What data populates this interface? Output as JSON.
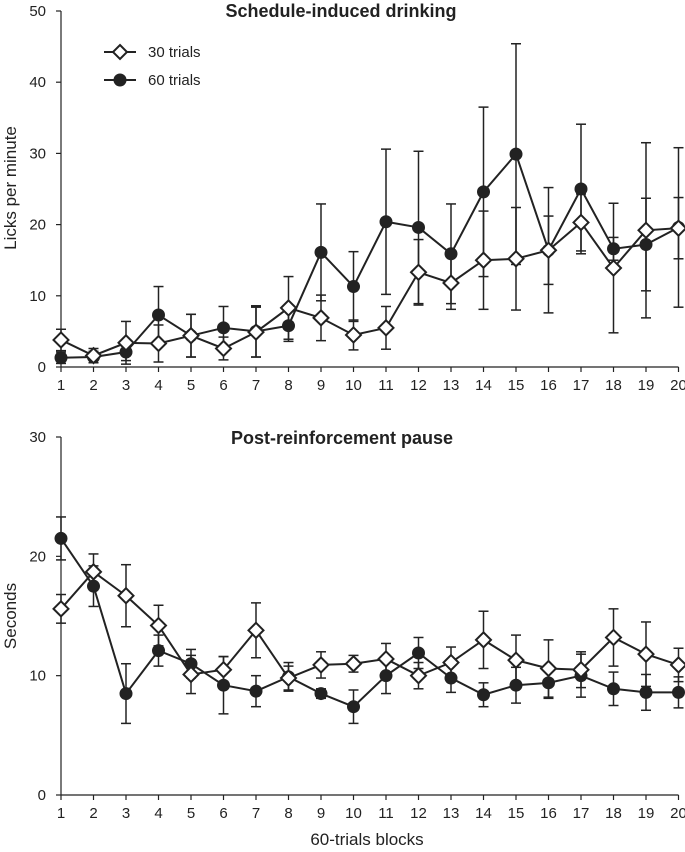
{
  "chart_data": [
    {
      "type": "line",
      "title": "Schedule-induced drinking",
      "xlabel": "",
      "ylabel": "Licks per minute",
      "ylim": [
        0,
        50
      ],
      "yticks": [
        0,
        10,
        20,
        30,
        40,
        50
      ],
      "categories": [
        "1",
        "2",
        "3",
        "4",
        "5",
        "6",
        "7",
        "8",
        "9",
        "10",
        "11",
        "12",
        "13",
        "14",
        "15",
        "16",
        "17",
        "18",
        "19",
        "20"
      ],
      "legend_position": "top-left",
      "series": [
        {
          "name": "30 trials",
          "marker": "open-diamond",
          "values": [
            3.8,
            1.6,
            3.4,
            3.3,
            4.4,
            2.6,
            4.9,
            8.3,
            6.9,
            4.5,
            5.5,
            13.3,
            11.8,
            15.0,
            15.2,
            16.4,
            20.3,
            13.9,
            19.2,
            19.5
          ],
          "errors": [
            1.5,
            1.0,
            3.0,
            2.6,
            3.0,
            1.6,
            3.5,
            4.4,
            3.2,
            2.1,
            3.0,
            4.6,
            3.7,
            6.9,
            7.2,
            4.8,
            4.0,
            9.1,
            12.3,
            4.3
          ]
        },
        {
          "name": "60 trials",
          "marker": "filled-circle",
          "values": [
            1.3,
            1.4,
            2.1,
            7.3,
            4.4,
            5.5,
            5.0,
            5.8,
            16.1,
            11.3,
            20.4,
            19.6,
            15.9,
            24.6,
            29.9,
            16.4,
            25.0,
            16.6,
            17.2,
            19.6
          ],
          "errors": [
            0.8,
            0.8,
            1.2,
            4.0,
            3.0,
            3.0,
            3.6,
            2.2,
            6.8,
            4.9,
            10.2,
            10.7,
            7.0,
            11.9,
            15.5,
            8.8,
            9.1,
            1.6,
            6.5,
            11.2
          ]
        }
      ]
    },
    {
      "type": "line",
      "title": "Post-reinforcement pause",
      "xlabel": "60-trials blocks",
      "ylabel": "Seconds",
      "ylim": [
        0,
        30
      ],
      "yticks": [
        0,
        10,
        20,
        30
      ],
      "categories": [
        "1",
        "2",
        "3",
        "4",
        "5",
        "6",
        "7",
        "8",
        "9",
        "10",
        "11",
        "12",
        "13",
        "14",
        "15",
        "16",
        "17",
        "18",
        "19",
        "20"
      ],
      "series": [
        {
          "name": "30 trials",
          "marker": "open-diamond",
          "values": [
            15.6,
            18.7,
            16.7,
            14.2,
            10.1,
            10.5,
            13.8,
            9.8,
            10.9,
            11.0,
            11.4,
            10.0,
            11.1,
            13.0,
            11.3,
            10.6,
            10.5,
            13.2,
            11.8,
            10.9
          ],
          "errors": [
            1.2,
            1.5,
            2.6,
            1.7,
            1.6,
            1.1,
            2.3,
            1.0,
            1.1,
            0.7,
            1.3,
            1.1,
            1.3,
            2.4,
            2.1,
            2.4,
            1.5,
            2.4,
            2.7,
            1.4
          ]
        },
        {
          "name": "60 trials",
          "marker": "filled-circle",
          "values": [
            21.5,
            17.5,
            8.5,
            12.1,
            11.0,
            9.2,
            8.7,
            9.9,
            8.5,
            7.4,
            10.0,
            11.9,
            9.8,
            8.4,
            9.2,
            9.4,
            10.0,
            8.9,
            8.6,
            8.6
          ],
          "errors": [
            1.8,
            1.7,
            2.5,
            1.3,
            1.2,
            2.4,
            1.3,
            1.2,
            0.4,
            1.4,
            1.5,
            1.3,
            1.2,
            1.0,
            1.5,
            1.3,
            1.8,
            1.4,
            1.5,
            1.3
          ]
        }
      ]
    }
  ]
}
